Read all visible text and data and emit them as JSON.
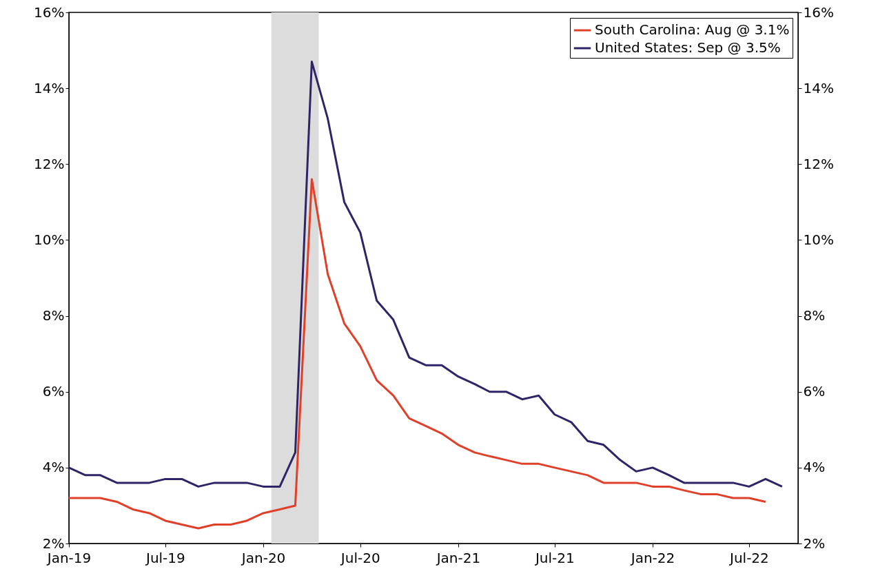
{
  "chart_data": {
    "type": "line",
    "x": [
      "2019-01",
      "2019-02",
      "2019-03",
      "2019-04",
      "2019-05",
      "2019-06",
      "2019-07",
      "2019-08",
      "2019-09",
      "2019-10",
      "2019-11",
      "2019-12",
      "2020-01",
      "2020-02",
      "2020-03",
      "2020-04",
      "2020-05",
      "2020-06",
      "2020-07",
      "2020-08",
      "2020-09",
      "2020-10",
      "2020-11",
      "2020-12",
      "2021-01",
      "2021-02",
      "2021-03",
      "2021-04",
      "2021-05",
      "2021-06",
      "2021-07",
      "2021-08",
      "2021-09",
      "2021-10",
      "2021-11",
      "2021-12",
      "2022-01",
      "2022-02",
      "2022-03",
      "2022-04",
      "2022-05",
      "2022-06",
      "2022-07",
      "2022-08",
      "2022-09"
    ],
    "series": [
      {
        "name": "South Carolina: Aug @ 3.1%",
        "color": "#e0402a",
        "values": [
          3.2,
          3.2,
          3.2,
          3.1,
          2.9,
          2.8,
          2.6,
          2.5,
          2.4,
          2.5,
          2.5,
          2.6,
          2.8,
          2.9,
          3.0,
          11.6,
          9.1,
          7.8,
          7.2,
          6.3,
          5.9,
          5.3,
          5.1,
          4.9,
          4.6,
          4.4,
          4.3,
          4.2,
          4.1,
          4.1,
          4.0,
          3.9,
          3.8,
          3.6,
          3.6,
          3.6,
          3.5,
          3.5,
          3.4,
          3.3,
          3.3,
          3.2,
          3.2,
          3.1,
          null
        ]
      },
      {
        "name": "United States: Sep @ 3.5%",
        "color": "#2e2466",
        "values": [
          4.0,
          3.8,
          3.8,
          3.6,
          3.6,
          3.6,
          3.7,
          3.7,
          3.5,
          3.6,
          3.6,
          3.6,
          3.5,
          3.5,
          4.4,
          14.7,
          13.2,
          11.0,
          10.2,
          8.4,
          7.9,
          6.9,
          6.7,
          6.7,
          6.4,
          6.2,
          6.0,
          6.0,
          5.8,
          5.9,
          5.4,
          5.2,
          4.7,
          4.6,
          4.2,
          3.9,
          4.0,
          3.8,
          3.6,
          3.6,
          3.6,
          3.6,
          3.5,
          3.7,
          3.5
        ]
      }
    ],
    "xlim": [
      "2019-01",
      "2022-10"
    ],
    "xticks": [
      {
        "value": "2019-01",
        "label": "Jan-19"
      },
      {
        "value": "2019-07",
        "label": "Jul-19"
      },
      {
        "value": "2020-01",
        "label": "Jan-20"
      },
      {
        "value": "2020-07",
        "label": "Jul-20"
      },
      {
        "value": "2021-01",
        "label": "Jan-21"
      },
      {
        "value": "2021-07",
        "label": "Jul-21"
      },
      {
        "value": "2022-01",
        "label": "Jan-22"
      },
      {
        "value": "2022-07",
        "label": "Jul-22"
      }
    ],
    "ylim": [
      2,
      16
    ],
    "yticks": [
      {
        "value": 2,
        "label": "2%"
      },
      {
        "value": 4,
        "label": "4%"
      },
      {
        "value": 6,
        "label": "6%"
      },
      {
        "value": 8,
        "label": "8%"
      },
      {
        "value": 10,
        "label": "10%"
      },
      {
        "value": 12,
        "label": "12%"
      },
      {
        "value": 14,
        "label": "14%"
      },
      {
        "value": 16,
        "label": "16%"
      }
    ],
    "y2lim": [
      2,
      16
    ],
    "y2ticks": [
      {
        "value": 2,
        "label": "2%"
      },
      {
        "value": 4,
        "label": "4%"
      },
      {
        "value": 6,
        "label": "6%"
      },
      {
        "value": 8,
        "label": "8%"
      },
      {
        "value": 10,
        "label": "10%"
      },
      {
        "value": 12,
        "label": "12%"
      },
      {
        "value": 14,
        "label": "14%"
      },
      {
        "value": 16,
        "label": "16%"
      }
    ],
    "bands": [
      {
        "axis": "x",
        "from": "2020-01-16",
        "to": "2020-04-14",
        "color": "#dcdcdc"
      }
    ],
    "legend": "top right",
    "grid": false,
    "marker": "none",
    "line_style": "solid"
  }
}
